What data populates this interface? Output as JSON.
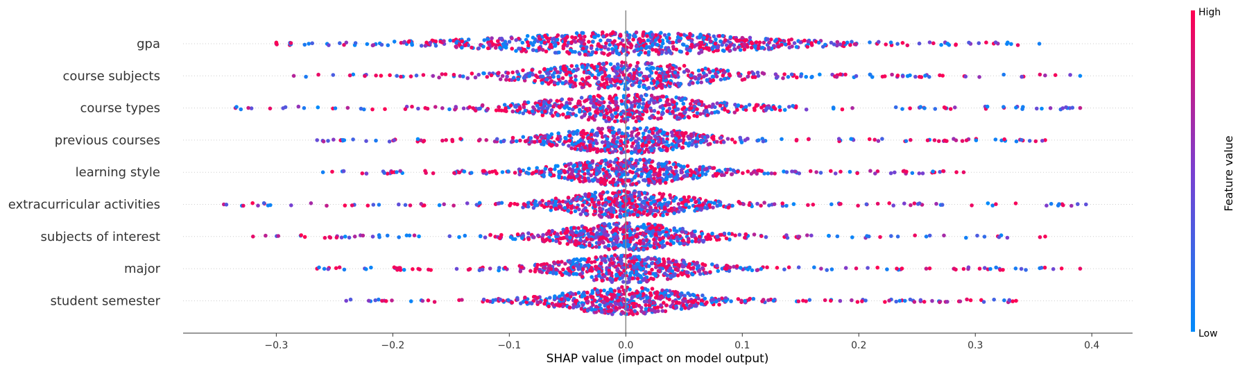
{
  "chart_data": {
    "type": "scatter",
    "subtype": "beeswarm",
    "xlabel": "SHAP value (impact on model output)",
    "xlim": [
      -0.38,
      0.435
    ],
    "xticks": [
      -0.3,
      -0.2,
      -0.1,
      0.0,
      0.1,
      0.2,
      0.3,
      0.4
    ],
    "xtick_labels": [
      "−0.3",
      "−0.2",
      "−0.1",
      "0.0",
      "0.1",
      "0.2",
      "0.3",
      "0.4"
    ],
    "zero_line": 0.0,
    "features": [
      {
        "name": "gpa",
        "range": [
          -0.3,
          0.355
        ],
        "spread": "wide",
        "center_density": "low",
        "density_peaks": [
          -0.13,
          -0.08,
          0.0,
          0.1,
          0.12
        ]
      },
      {
        "name": "course subjects",
        "range": [
          -0.285,
          0.39
        ],
        "spread": "medium",
        "center_density": "high"
      },
      {
        "name": "course types",
        "range": [
          -0.335,
          0.39
        ],
        "spread": "medium",
        "center_density": "high"
      },
      {
        "name": "previous courses",
        "range": [
          -0.265,
          0.36
        ],
        "spread": "narrow",
        "center_density": "high"
      },
      {
        "name": "learning style",
        "range": [
          -0.26,
          0.29
        ],
        "spread": "narrow",
        "center_density": "high"
      },
      {
        "name": "extracurricular activities",
        "range": [
          -0.345,
          0.395
        ],
        "spread": "narrow",
        "center_density": "high"
      },
      {
        "name": "subjects of interest",
        "range": [
          -0.32,
          0.36
        ],
        "spread": "narrow",
        "center_density": "high"
      },
      {
        "name": "major",
        "range": [
          -0.265,
          0.39
        ],
        "spread": "narrow",
        "center_density": "high"
      },
      {
        "name": "student semester",
        "range": [
          -0.24,
          0.335
        ],
        "spread": "narrow",
        "center_density": "high"
      }
    ],
    "colorbar": {
      "title": "Feature value",
      "high_label": "High",
      "low_label": "Low",
      "low_color": "#008bfb",
      "mid_color": "#7a3fd0",
      "high_color": "#ff0051"
    },
    "grid": false,
    "legend": "colorbar-right"
  }
}
